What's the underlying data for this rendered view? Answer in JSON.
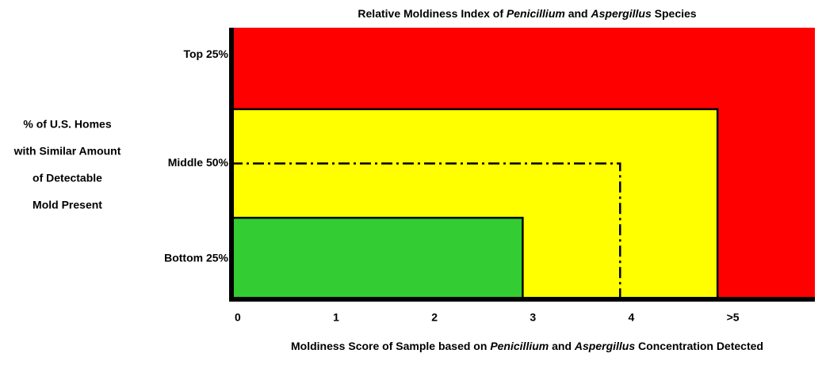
{
  "chart_data": {
    "type": "zone",
    "title": [
      {
        "text": "Relative Moldiness Index of ",
        "italic": false
      },
      {
        "text": "Penicillium",
        "italic": true
      },
      {
        "text": " and ",
        "italic": false
      },
      {
        "text": "Aspergillus",
        "italic": true
      },
      {
        "text": " Species",
        "italic": false
      }
    ],
    "x_label": [
      {
        "text": "Moldiness Score of Sample based on ",
        "italic": false
      },
      {
        "text": "Penicillium",
        "italic": true
      },
      {
        "text": " and ",
        "italic": false
      },
      {
        "text": "Aspergillus",
        "italic": true
      },
      {
        "text": " Concentration Detected",
        "italic": false
      }
    ],
    "y_label": [
      "% of U.S. Homes",
      "with Similar Amount",
      "of Detectable",
      "Mold Present"
    ],
    "xlim": [
      0,
      5.93
    ],
    "ylim": [
      0,
      100
    ],
    "xticks": [
      0,
      1,
      2,
      3,
      4,
      {
        "value": 5,
        "label": ">5"
      }
    ],
    "yticks": [
      {
        "value": 15,
        "label": "Bottom 25%"
      },
      {
        "value": 50,
        "label": "Middle 50%"
      },
      {
        "value": 90,
        "label": "Top 25%"
      }
    ],
    "zones": [
      {
        "color": "#ff0000",
        "x": 5.93,
        "y": 100
      },
      {
        "color": "#ffff00",
        "x": 4.94,
        "y": 70
      },
      {
        "color": "#33cc33",
        "x": 2.96,
        "y": 30
      }
    ],
    "reference": {
      "x": 3.95,
      "y": 50
    }
  }
}
